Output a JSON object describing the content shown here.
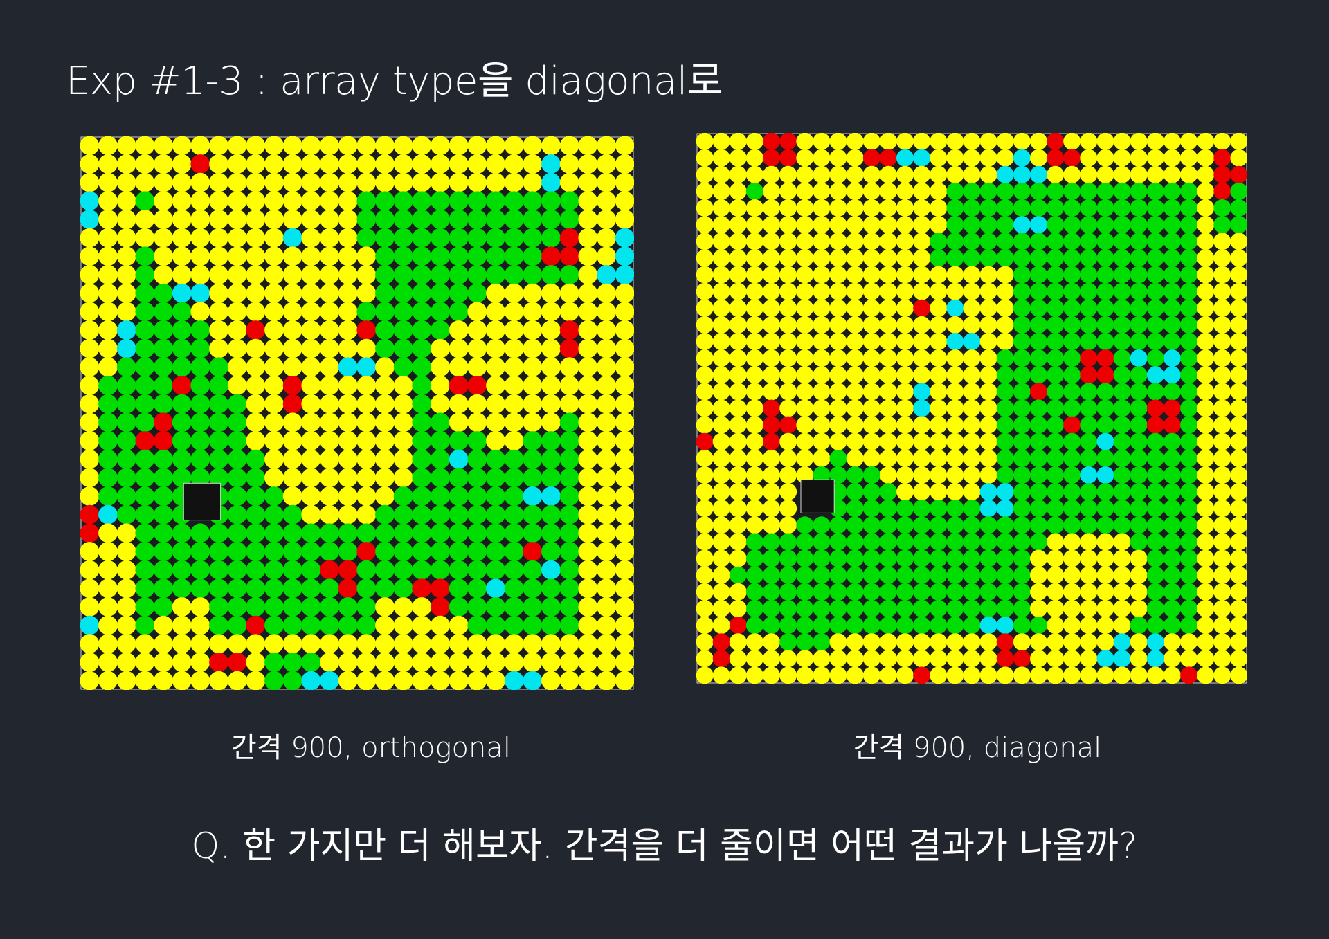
{
  "slide": {
    "title": "Exp #1-3 : array type을 diagonal로",
    "question": "Q. 한 가지만 더 해보자. 간격을 더 줄이면 어떤 결과가 나올까?"
  },
  "panels": [
    {
      "id": "orthogonal",
      "caption": "간격 900, orthogonal",
      "array_type": "orthogonal",
      "grid": [
        30,
        30
      ]
    },
    {
      "id": "diagonal",
      "caption": "간격 900, diagonal",
      "array_type": "diagonal",
      "grid": [
        33,
        33
      ]
    }
  ],
  "colors": {
    "background": "#22262e",
    "yellow": "#ffff00",
    "green": "#00dd00",
    "red": "#ee0000",
    "cyan": "#00e5ee",
    "outline": "#d8d8d8"
  }
}
